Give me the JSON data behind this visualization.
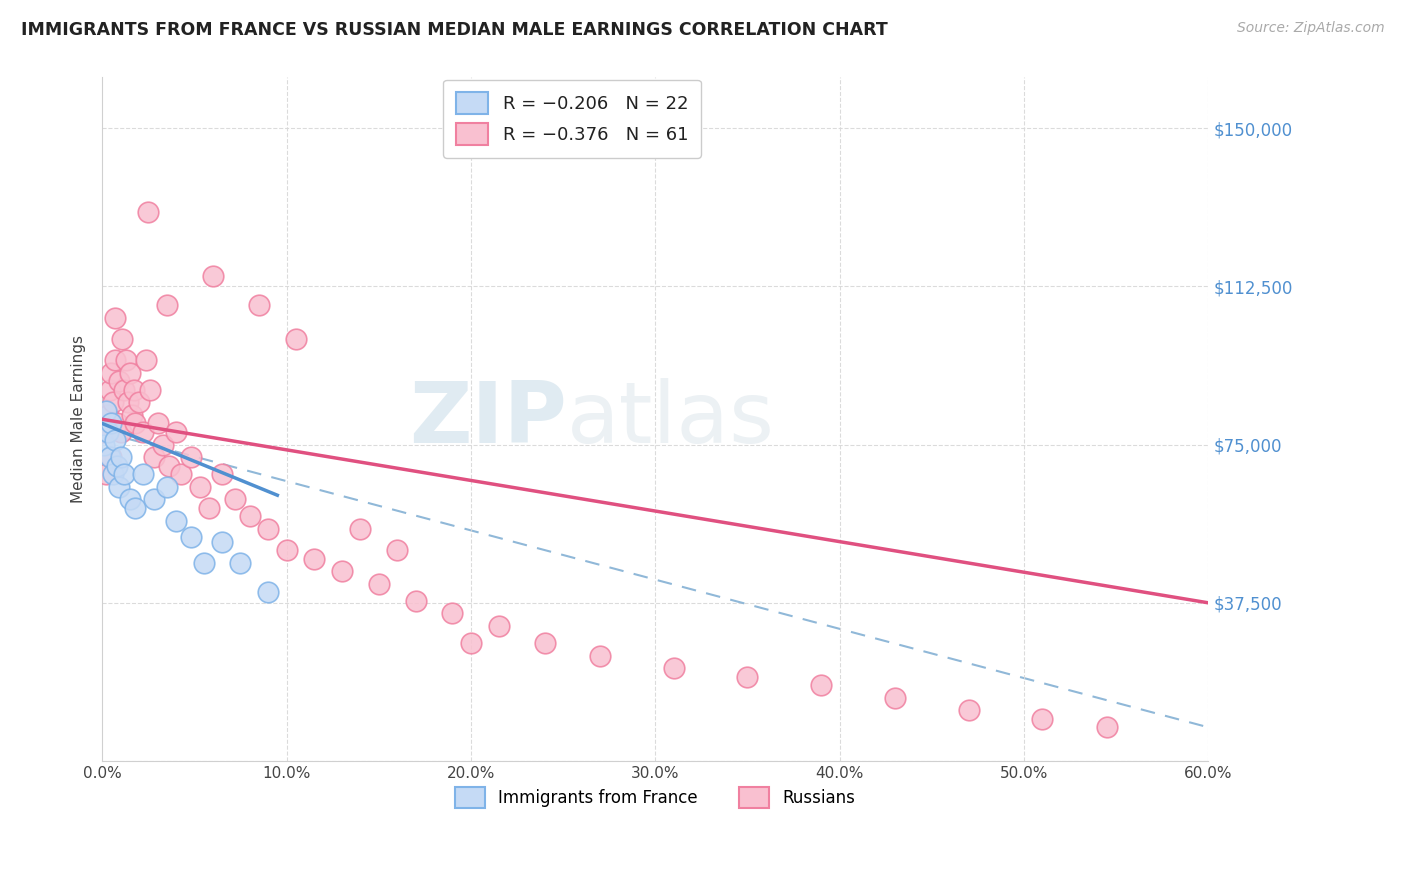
{
  "title": "IMMIGRANTS FROM FRANCE VS RUSSIAN MEDIAN MALE EARNINGS CORRELATION CHART",
  "source": "Source: ZipAtlas.com",
  "ylabel": "Median Male Earnings",
  "yticks": [
    0,
    37500,
    75000,
    112500,
    150000
  ],
  "ytick_labels": [
    "",
    "$37,500",
    "$75,000",
    "$112,500",
    "$150,000"
  ],
  "xmin": 0.0,
  "xmax": 0.6,
  "ymin": 0,
  "ymax": 162000,
  "legend_label_france": "Immigrants from France",
  "legend_label_russia": "Russians",
  "color_france_fill": "#c5daf5",
  "color_russia_fill": "#f9c0d0",
  "color_france_edge": "#7fb3e8",
  "color_russia_edge": "#f080a0",
  "color_france_line": "#5090d0",
  "color_russia_line": "#e05080",
  "color_dashed": "#90b8d8",
  "watermark_zip": "ZIP",
  "watermark_atlas": "atlas",
  "france_x": [
    0.001,
    0.002,
    0.003,
    0.004,
    0.005,
    0.006,
    0.007,
    0.008,
    0.009,
    0.01,
    0.012,
    0.015,
    0.018,
    0.022,
    0.028,
    0.035,
    0.04,
    0.048,
    0.055,
    0.065,
    0.075,
    0.09
  ],
  "france_y": [
    75000,
    83000,
    78000,
    72000,
    80000,
    68000,
    76000,
    70000,
    65000,
    72000,
    68000,
    62000,
    60000,
    68000,
    62000,
    65000,
    57000,
    53000,
    47000,
    52000,
    47000,
    40000
  ],
  "russia_x": [
    0.001,
    0.002,
    0.003,
    0.004,
    0.005,
    0.005,
    0.006,
    0.007,
    0.007,
    0.008,
    0.009,
    0.01,
    0.011,
    0.012,
    0.013,
    0.014,
    0.015,
    0.016,
    0.017,
    0.018,
    0.02,
    0.022,
    0.024,
    0.026,
    0.028,
    0.03,
    0.033,
    0.036,
    0.04,
    0.043,
    0.048,
    0.053,
    0.058,
    0.065,
    0.072,
    0.08,
    0.09,
    0.1,
    0.115,
    0.13,
    0.15,
    0.17,
    0.19,
    0.215,
    0.24,
    0.27,
    0.31,
    0.35,
    0.39,
    0.43,
    0.47,
    0.51,
    0.545,
    0.025,
    0.035,
    0.06,
    0.085,
    0.105,
    0.14,
    0.16,
    0.2
  ],
  "russia_y": [
    78000,
    68000,
    82000,
    88000,
    72000,
    92000,
    85000,
    95000,
    105000,
    80000,
    90000,
    78000,
    100000,
    88000,
    95000,
    85000,
    92000,
    82000,
    88000,
    80000,
    85000,
    78000,
    95000,
    88000,
    72000,
    80000,
    75000,
    70000,
    78000,
    68000,
    72000,
    65000,
    60000,
    68000,
    62000,
    58000,
    55000,
    50000,
    48000,
    45000,
    42000,
    38000,
    35000,
    32000,
    28000,
    25000,
    22000,
    20000,
    18000,
    15000,
    12000,
    10000,
    8000,
    130000,
    108000,
    115000,
    108000,
    100000,
    55000,
    50000,
    28000
  ],
  "france_line_x": [
    0.0,
    0.095
  ],
  "france_line_y": [
    80000,
    63000
  ],
  "russia_line_x": [
    0.0,
    0.6
  ],
  "russia_line_y": [
    81000,
    37500
  ],
  "dashed_line_x": [
    0.0,
    0.6
  ],
  "dashed_line_y": [
    78000,
    8000
  ]
}
